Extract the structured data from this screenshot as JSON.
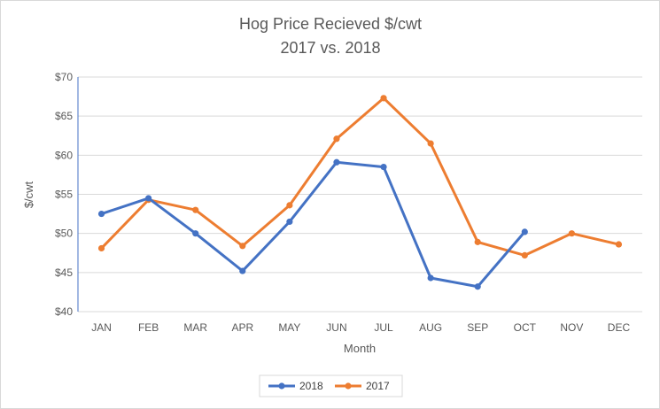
{
  "chart_data": {
    "type": "line",
    "title": "Hog Price Recieved $/cwt",
    "subtitle": "2017 vs. 2018",
    "xlabel": "Month",
    "ylabel": "$/cwt",
    "categories": [
      "JAN",
      "FEB",
      "MAR",
      "APR",
      "MAY",
      "JUN",
      "JUL",
      "AUG",
      "SEP",
      "OCT",
      "NOV",
      "DEC"
    ],
    "yticks": [
      "$40",
      "$45",
      "$50",
      "$55",
      "$60",
      "$65",
      "$70"
    ],
    "ylim": [
      40,
      70
    ],
    "grid": true,
    "legend_position": "bottom",
    "series": [
      {
        "name": "2018",
        "color": "#4472C4",
        "values": [
          52.5,
          54.5,
          50.0,
          45.2,
          51.5,
          59.1,
          58.5,
          44.3,
          43.2,
          50.2,
          null,
          null
        ]
      },
      {
        "name": "2017",
        "color": "#ED7D31",
        "values": [
          48.1,
          54.3,
          53.0,
          48.4,
          53.6,
          62.1,
          67.3,
          61.5,
          48.9,
          47.2,
          50.0,
          48.6
        ]
      }
    ]
  }
}
